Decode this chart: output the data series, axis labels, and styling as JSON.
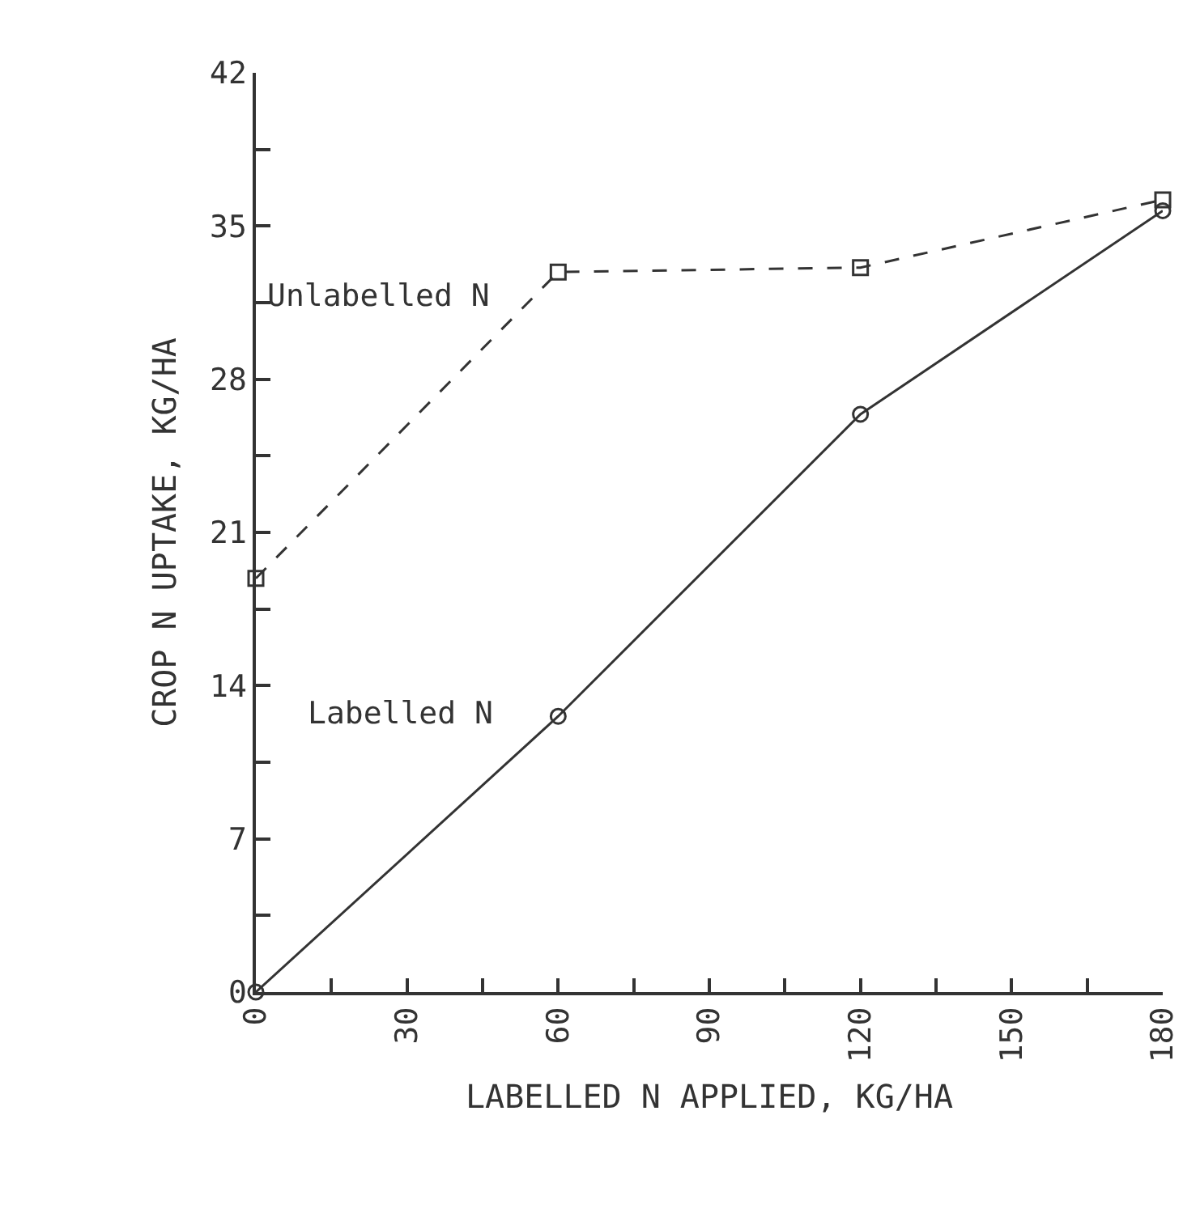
{
  "chart_data": {
    "type": "line",
    "xlabel": "LABELLED N APPLIED, KG/HA",
    "ylabel": "CROP N UPTAKE, KG/HA",
    "x": [
      0,
      60,
      120,
      180
    ],
    "series": [
      {
        "name": "Unlabelled N",
        "color": "#333333",
        "values": [
          18.9,
          32.9,
          33.1,
          36.2
        ],
        "marker": "square",
        "line_style": "dashed"
      },
      {
        "name": "Labelled N",
        "color": "#333333",
        "values": [
          0,
          12.6,
          26.4,
          35.7
        ],
        "marker": "circle",
        "line_style": "solid"
      }
    ],
    "xlim": [
      0,
      180
    ],
    "ylim": [
      0,
      42
    ],
    "xticks": [
      0,
      {
        "value": 15,
        "label": null
      },
      30,
      {
        "value": 45,
        "label": null
      },
      60,
      {
        "value": 75,
        "label": null
      },
      90,
      {
        "value": 105,
        "label": null
      },
      120,
      {
        "value": 135,
        "label": null
      },
      150,
      {
        "value": 165,
        "label": null
      },
      180
    ],
    "yticks": [
      0,
      {
        "value": 3.5,
        "label": null
      },
      7,
      {
        "value": 10.5,
        "label": null
      },
      14,
      {
        "value": 17.5,
        "label": null
      },
      21,
      {
        "value": 24.5,
        "label": null
      },
      28,
      {
        "value": 31.5,
        "label": null
      },
      35,
      {
        "value": 38.5,
        "label": null
      },
      42
    ],
    "legend": false
  }
}
